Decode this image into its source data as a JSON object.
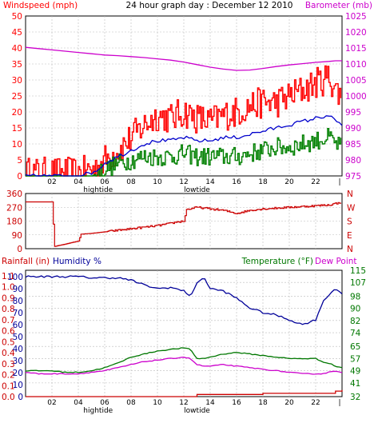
{
  "page_title": "24 hour graph day : December 12 2010",
  "tide_labels": [
    "hightide",
    "lowtide"
  ],
  "colors": {
    "wind": "#ff0000",
    "gust": "#ff0000",
    "avg": "#0000cc",
    "green": "#008000",
    "baro": "#cc00cc",
    "dir": "#cc0000",
    "rain": "#cc0000",
    "hum": "#000099",
    "temp": "#007700",
    "dew": "#cc00cc",
    "grid": "#bbbbbb",
    "frame": "#000000",
    "bg": "#ffffff"
  },
  "chart_data": [
    {
      "type": "line",
      "panel": "wind",
      "title": "24 hour graph day : December 12 2010",
      "ylabel_left": "Windspeed (mph)",
      "ylabel_right": "Barometer (mb)",
      "x_ticks": [
        "02",
        "04",
        "06",
        "08",
        "10",
        "12",
        "14",
        "16",
        "18",
        "20",
        "22"
      ],
      "y_left_ticks": [
        0,
        5,
        10,
        15,
        20,
        25,
        30,
        35,
        40,
        45,
        50
      ],
      "y_right_ticks": [
        975,
        980,
        985,
        990,
        995,
        1000,
        1005,
        1010,
        1015,
        1020,
        1025
      ],
      "ylim_left": [
        0,
        50
      ],
      "ylim_right": [
        975,
        1025
      ],
      "x": [
        0,
        1,
        2,
        3,
        4,
        5,
        5.5,
        6,
        7,
        8,
        9,
        10,
        11,
        12,
        13,
        14,
        15,
        16,
        17,
        18,
        19,
        20,
        21,
        22,
        23,
        23.5,
        24
      ],
      "series": [
        {
          "key": "gust",
          "values": [
            1,
            1,
            1,
            1,
            1,
            2,
            3,
            5,
            8,
            12,
            16,
            19,
            18,
            20,
            18,
            17,
            19,
            20,
            22,
            23,
            23,
            25,
            27,
            29,
            31,
            27,
            24
          ]
        },
        {
          "key": "avg",
          "values": [
            0,
            0,
            0,
            0,
            0,
            1,
            2,
            4,
            6,
            8,
            10,
            11,
            11,
            12,
            11,
            11,
            12,
            12,
            13,
            14,
            15,
            16,
            17,
            18,
            19,
            17,
            16
          ]
        },
        {
          "key": "min",
          "values": [
            0,
            0,
            0,
            0,
            0,
            0,
            1,
            2,
            4,
            5,
            6,
            6,
            6,
            7,
            6,
            6,
            6,
            6,
            7,
            8,
            9,
            9,
            10,
            11,
            12,
            10,
            9
          ]
        },
        {
          "key": "baro",
          "axis": "right",
          "values": [
            1015.2,
            1014.8,
            1014.4,
            1014.0,
            1013.6,
            1013.2,
            1013.0,
            1012.8,
            1012.6,
            1012.3,
            1012.0,
            1011.6,
            1011.2,
            1010.6,
            1009.8,
            1009.0,
            1008.4,
            1008.0,
            1008.1,
            1008.6,
            1009.2,
            1009.7,
            1010.1,
            1010.5,
            1010.8,
            1011.0,
            1011.0
          ]
        }
      ]
    },
    {
      "type": "line",
      "panel": "direction",
      "y_left_ticks": [
        0,
        90,
        180,
        270,
        360
      ],
      "right_labels": [
        "N",
        "W",
        "S",
        "E",
        "N"
      ],
      "ylim": [
        0,
        360
      ],
      "x": [
        0,
        1,
        2,
        2.2,
        3,
        4,
        4.2,
        5,
        6,
        7,
        8,
        9,
        10,
        11,
        11.5,
        12,
        12.2,
        13,
        14,
        15,
        16,
        17,
        18,
        19,
        20,
        21,
        22,
        23,
        23.5,
        24
      ],
      "values": [
        305,
        305,
        305,
        15,
        30,
        50,
        95,
        100,
        110,
        120,
        130,
        140,
        150,
        165,
        175,
        180,
        255,
        270,
        260,
        250,
        230,
        250,
        260,
        265,
        270,
        275,
        280,
        285,
        295,
        300
      ]
    },
    {
      "type": "line",
      "panel": "rain-humidity-temp",
      "ylabel_left": "Rainfall (in)",
      "ylabel_humidity": "Humidity %",
      "ylabel_right": "Temperature (°F)",
      "ylabel_dew": "Dew Point",
      "x_ticks": [
        "02",
        "04",
        "06",
        "08",
        "10",
        "12",
        "14",
        "16",
        "18",
        "20",
        "22"
      ],
      "y_rain_ticks": [
        0.0,
        0.1,
        0.2,
        0.3,
        0.4,
        0.5,
        0.6,
        0.7,
        0.8,
        0.9,
        1.0,
        1.1
      ],
      "y_hum_ticks": [
        0,
        10,
        20,
        30,
        40,
        50,
        60,
        70,
        80,
        90,
        100
      ],
      "y_temp_ticks": [
        32,
        41,
        49,
        57,
        65,
        74,
        82,
        90,
        98,
        107,
        115
      ],
      "ylim_rain": [
        0,
        1.15
      ],
      "ylim_temp": [
        32,
        115
      ],
      "x": [
        0,
        1,
        2,
        3,
        4,
        5,
        6,
        7,
        8,
        9,
        10,
        11,
        12,
        12.5,
        13,
        13.5,
        14,
        15,
        16,
        17,
        18,
        19,
        20,
        21,
        22,
        22.5,
        23,
        23.5,
        24
      ],
      "series": [
        {
          "key": "humidity",
          "axis": "humidity",
          "values": [
            100,
            100,
            100,
            100,
            100,
            99,
            99,
            99,
            97,
            93,
            90,
            91,
            88,
            84,
            94,
            100,
            90,
            88,
            82,
            74,
            70,
            68,
            64,
            60,
            64,
            78,
            85,
            90,
            86
          ]
        },
        {
          "key": "temperature",
          "axis": "temp",
          "values": [
            49,
            49,
            49,
            48,
            48,
            49,
            51,
            54,
            58,
            60,
            62,
            63,
            64,
            63,
            57,
            57,
            58,
            60,
            61,
            60,
            59,
            58,
            57,
            57,
            57,
            55,
            54,
            52,
            51
          ]
        },
        {
          "key": "dewpoint",
          "axis": "temp",
          "values": [
            48,
            47,
            47,
            47,
            47,
            48,
            49,
            51,
            53,
            55,
            56,
            57,
            58,
            57,
            53,
            52,
            52,
            53,
            52,
            51,
            50,
            49,
            48,
            47,
            47,
            47,
            48,
            49,
            48
          ]
        },
        {
          "key": "rain",
          "axis": "rain",
          "values": [
            0,
            0,
            0,
            0,
            0,
            0,
            0,
            0,
            0,
            0,
            0,
            0,
            0,
            0,
            0.02,
            0.02,
            0.02,
            0.02,
            0.02,
            0.02,
            0.03,
            0.03,
            0.03,
            0.03,
            0.03,
            0.03,
            0.03,
            0.05,
            0.06
          ]
        }
      ]
    }
  ]
}
